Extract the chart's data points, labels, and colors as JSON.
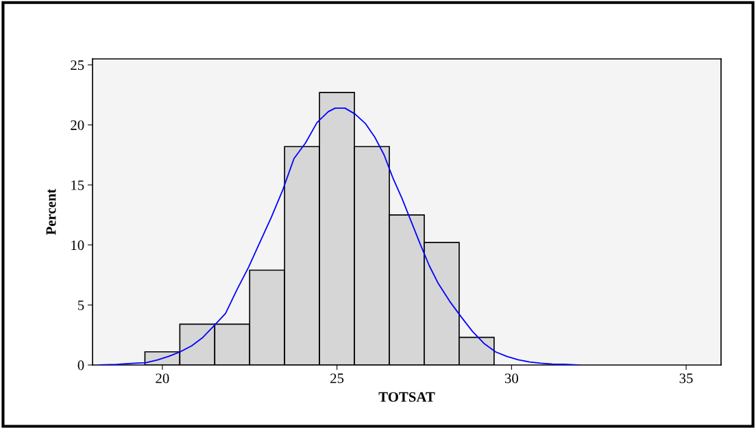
{
  "chart_data": {
    "type": "histogram",
    "xlabel": "TOTSAT",
    "ylabel": "Percent",
    "bins": [
      19.5,
      20.5,
      21.5,
      22.5,
      23.5,
      24.5,
      25.5,
      26.5,
      27.5,
      28.5,
      29.5
    ],
    "values": [
      1.1,
      3.4,
      3.4,
      7.9,
      18.2,
      22.7,
      18.2,
      12.5,
      10.2,
      2.3
    ],
    "color": "#d6d6d6",
    "series": [
      {
        "type": "line",
        "color": "#0000ff",
        "x": [
          18.19,
          18.68,
          19.2,
          19.53,
          19.86,
          20.18,
          20.51,
          20.84,
          21.16,
          21.49,
          21.81,
          22.14,
          22.47,
          22.79,
          23.12,
          23.45,
          23.77,
          24.1,
          24.43,
          24.75,
          24.95,
          25.23,
          25.52,
          25.82,
          26.08,
          26.35,
          26.6,
          26.86,
          27.12,
          27.38,
          27.64,
          27.9,
          28.23,
          28.56,
          28.88,
          29.21,
          29.54,
          29.86,
          30.19,
          30.52,
          30.84,
          31.17,
          31.5,
          31.95
        ],
        "values": [
          0,
          0.05,
          0.15,
          0.19,
          0.42,
          0.72,
          1.1,
          1.6,
          2.3,
          3.3,
          4.3,
          6.3,
          8.15,
          10.2,
          12.3,
          14.6,
          17.2,
          18.5,
          20.2,
          21.1,
          21.4,
          21.4,
          20.9,
          20.1,
          19.0,
          17.5,
          15.6,
          13.9,
          12.0,
          10.1,
          8.3,
          6.8,
          5.3,
          4.0,
          2.8,
          1.8,
          1.1,
          0.72,
          0.44,
          0.25,
          0.15,
          0.08,
          0.06,
          0
        ]
      }
    ],
    "xlim": [
      18,
      36
    ],
    "xticks": [
      20,
      25,
      30,
      35
    ],
    "ylim": [
      0,
      25.5
    ],
    "yticks": [
      0,
      5,
      10,
      15,
      20,
      25
    ],
    "grid": false,
    "legend": false
  }
}
